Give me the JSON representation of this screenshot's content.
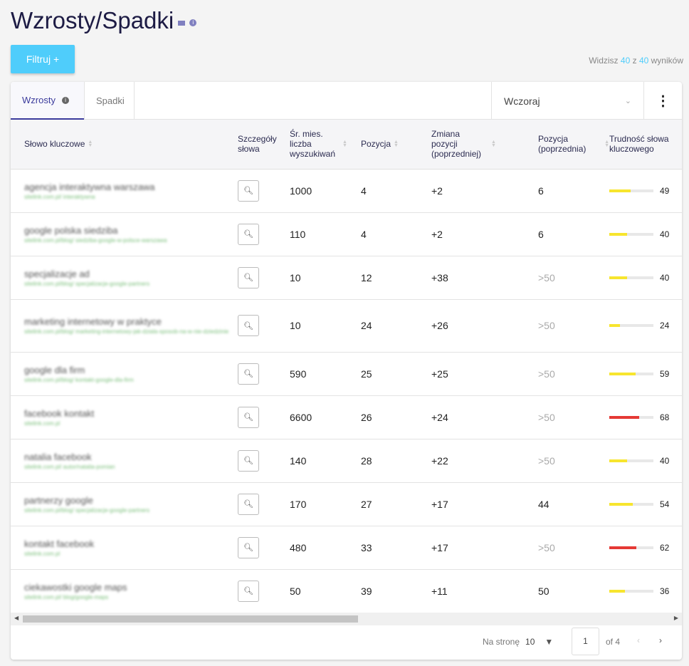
{
  "page": {
    "title": "Wzrosty/Spadki",
    "filter_label": "Filtruj +",
    "results": {
      "prefix": "Widzisz",
      "shown": "40",
      "mid": "z",
      "total": "40",
      "suffix": "wyników"
    }
  },
  "tabs": [
    {
      "label": "Wzrosty"
    },
    {
      "label": "Spadki"
    }
  ],
  "period": "Wczoraj",
  "columns": [
    "Słowo kluczowe",
    "Szczegóły słowa",
    "Śr. mies. liczba wyszukiwań",
    "Pozycja",
    "Zmiana pozycji (poprzedniej)",
    "Pozycja (poprzednia)",
    "Trudność słowa kluczowego"
  ],
  "rows": [
    {
      "keyword": "agencja interaktywna warszawa",
      "url": "sitelink.com.pl/ interaktywna",
      "searches": "1000",
      "position": "4",
      "change": "+2",
      "prev": "6",
      "difficulty": 49,
      "color": "#f7e52e"
    },
    {
      "keyword": "google polska siedziba",
      "url": "sitelink.com.pl/blog/ siedziba-google-w-polsce-warszawa",
      "searches": "110",
      "position": "4",
      "change": "+2",
      "prev": "6",
      "difficulty": 40,
      "color": "#f7e52e"
    },
    {
      "keyword": "specjalizacje ad",
      "url": "sitelink.com.pl/blog/ specjalizacje-google-partners",
      "searches": "10",
      "position": "12",
      "change": "+38",
      "prev": ">50",
      "difficulty": 40,
      "color": "#f7e52e"
    },
    {
      "keyword": "marketing internetowy w praktyce",
      "url": "sitelink.com.pl/blog/ marketing-internetowy-jak-dziala-sposob-na-w-nie-dziedzinie",
      "searches": "10",
      "position": "24",
      "change": "+26",
      "prev": ">50",
      "difficulty": 24,
      "color": "#f7e52e"
    },
    {
      "keyword": "google dla firm",
      "url": "sitelink.com.pl/blog/ kontakt-google-dla-firm",
      "searches": "590",
      "position": "25",
      "change": "+25",
      "prev": ">50",
      "difficulty": 59,
      "color": "#f7e52e"
    },
    {
      "keyword": "facebook kontakt",
      "url": "sitelink.com.pl",
      "searches": "6600",
      "position": "26",
      "change": "+24",
      "prev": ">50",
      "difficulty": 68,
      "color": "#e53935"
    },
    {
      "keyword": "natalia facebook",
      "url": "sitelink.com.pl/ autor/natalia-pomian",
      "searches": "140",
      "position": "28",
      "change": "+22",
      "prev": ">50",
      "difficulty": 40,
      "color": "#f7e52e"
    },
    {
      "keyword": "partnerzy google",
      "url": "sitelink.com.pl/blog/ specjalizacje-google-partners",
      "searches": "170",
      "position": "27",
      "change": "+17",
      "prev": "44",
      "difficulty": 54,
      "color": "#f7e52e"
    },
    {
      "keyword": "kontakt facebook",
      "url": "sitelink.com.pl",
      "searches": "480",
      "position": "33",
      "change": "+17",
      "prev": ">50",
      "difficulty": 62,
      "color": "#e53935"
    },
    {
      "keyword": "ciekawostki google maps",
      "url": "sitelink.com.pl/ blog/google-maps",
      "searches": "50",
      "position": "39",
      "change": "+11",
      "prev": "50",
      "difficulty": 36,
      "color": "#f7e52e"
    }
  ],
  "pager": {
    "per_page_label": "Na stronę",
    "per_page": "10",
    "page": "1",
    "of": "of 4"
  }
}
